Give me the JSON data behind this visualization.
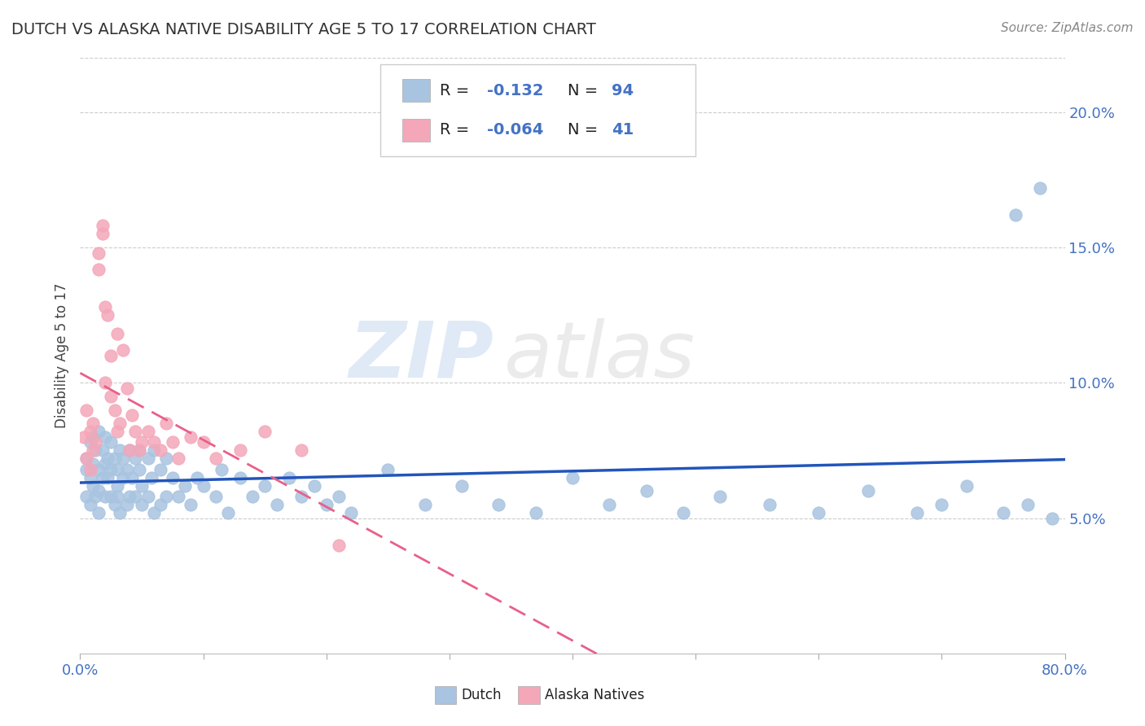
{
  "title": "DUTCH VS ALASKA NATIVE DISABILITY AGE 5 TO 17 CORRELATION CHART",
  "source": "Source: ZipAtlas.com",
  "ylabel": "Disability Age 5 to 17",
  "xmin": 0.0,
  "xmax": 0.8,
  "ymin": 0.0,
  "ymax": 0.22,
  "yticks": [
    0.05,
    0.1,
    0.15,
    0.2
  ],
  "ytick_labels": [
    "5.0%",
    "10.0%",
    "15.0%",
    "20.0%"
  ],
  "legend_dutch_R": "-0.132",
  "legend_dutch_N": "94",
  "legend_alaska_R": "-0.064",
  "legend_alaska_N": "41",
  "dutch_color": "#a8c4e0",
  "alaska_color": "#f4a7b9",
  "dutch_line_color": "#2255bb",
  "alaska_line_color": "#e8608a",
  "background_color": "#ffffff",
  "watermark_zip": "ZIP",
  "watermark_atlas": "atlas",
  "dutch_x": [
    0.005,
    0.005,
    0.005,
    0.008,
    0.008,
    0.008,
    0.01,
    0.01,
    0.01,
    0.012,
    0.012,
    0.015,
    0.015,
    0.015,
    0.015,
    0.018,
    0.018,
    0.02,
    0.02,
    0.02,
    0.022,
    0.022,
    0.025,
    0.025,
    0.025,
    0.028,
    0.028,
    0.03,
    0.03,
    0.03,
    0.032,
    0.032,
    0.035,
    0.035,
    0.038,
    0.038,
    0.04,
    0.04,
    0.042,
    0.045,
    0.045,
    0.048,
    0.048,
    0.05,
    0.05,
    0.055,
    0.055,
    0.058,
    0.06,
    0.06,
    0.065,
    0.065,
    0.07,
    0.07,
    0.075,
    0.08,
    0.085,
    0.09,
    0.095,
    0.1,
    0.11,
    0.115,
    0.12,
    0.13,
    0.14,
    0.15,
    0.16,
    0.17,
    0.18,
    0.19,
    0.2,
    0.21,
    0.22,
    0.25,
    0.28,
    0.31,
    0.34,
    0.37,
    0.4,
    0.43,
    0.46,
    0.49,
    0.52,
    0.56,
    0.6,
    0.64,
    0.68,
    0.7,
    0.72,
    0.75,
    0.76,
    0.77,
    0.78,
    0.79
  ],
  "dutch_y": [
    0.068,
    0.072,
    0.058,
    0.065,
    0.078,
    0.055,
    0.07,
    0.062,
    0.08,
    0.058,
    0.075,
    0.068,
    0.052,
    0.082,
    0.06,
    0.065,
    0.075,
    0.07,
    0.058,
    0.08,
    0.065,
    0.072,
    0.068,
    0.058,
    0.078,
    0.055,
    0.072,
    0.068,
    0.058,
    0.062,
    0.075,
    0.052,
    0.072,
    0.065,
    0.068,
    0.055,
    0.075,
    0.058,
    0.065,
    0.072,
    0.058,
    0.068,
    0.075,
    0.062,
    0.055,
    0.072,
    0.058,
    0.065,
    0.075,
    0.052,
    0.068,
    0.055,
    0.072,
    0.058,
    0.065,
    0.058,
    0.062,
    0.055,
    0.065,
    0.062,
    0.058,
    0.068,
    0.052,
    0.065,
    0.058,
    0.062,
    0.055,
    0.065,
    0.058,
    0.062,
    0.055,
    0.058,
    0.052,
    0.068,
    0.055,
    0.062,
    0.055,
    0.052,
    0.065,
    0.055,
    0.06,
    0.052,
    0.058,
    0.055,
    0.052,
    0.06,
    0.052,
    0.055,
    0.062,
    0.052,
    0.162,
    0.055,
    0.172,
    0.05
  ],
  "alaska_x": [
    0.003,
    0.005,
    0.005,
    0.008,
    0.008,
    0.01,
    0.01,
    0.012,
    0.015,
    0.015,
    0.018,
    0.018,
    0.02,
    0.02,
    0.022,
    0.025,
    0.025,
    0.028,
    0.03,
    0.03,
    0.032,
    0.035,
    0.038,
    0.04,
    0.042,
    0.045,
    0.048,
    0.05,
    0.055,
    0.06,
    0.065,
    0.07,
    0.075,
    0.08,
    0.09,
    0.1,
    0.11,
    0.13,
    0.15,
    0.18,
    0.21
  ],
  "alaska_y": [
    0.08,
    0.072,
    0.09,
    0.082,
    0.068,
    0.075,
    0.085,
    0.078,
    0.148,
    0.142,
    0.155,
    0.158,
    0.1,
    0.128,
    0.125,
    0.095,
    0.11,
    0.09,
    0.082,
    0.118,
    0.085,
    0.112,
    0.098,
    0.075,
    0.088,
    0.082,
    0.075,
    0.078,
    0.082,
    0.078,
    0.075,
    0.085,
    0.078,
    0.072,
    0.08,
    0.078,
    0.072,
    0.075,
    0.082,
    0.075,
    0.04
  ]
}
